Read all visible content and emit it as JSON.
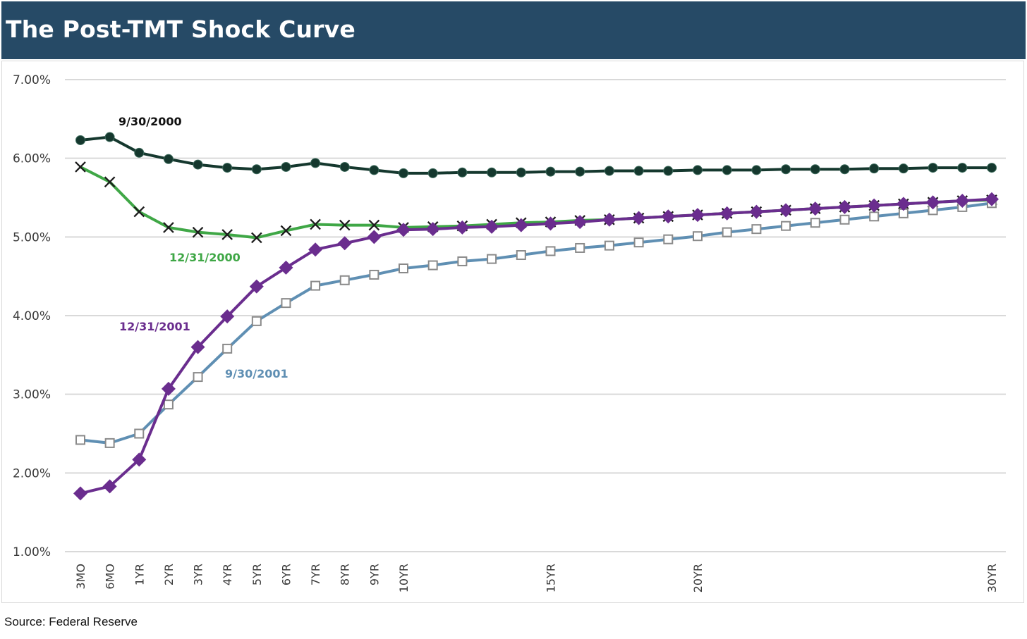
{
  "header": {
    "title": "The Post-TMT Shock Curve"
  },
  "footer": {
    "source": "Source: Federal Reserve"
  },
  "chart_data": {
    "type": "line",
    "title": "The Post-TMT Shock Curve",
    "xlabel": "",
    "ylabel": "",
    "ylim": [
      1.0,
      7.0
    ],
    "y_tick_values": [
      1.0,
      2.0,
      3.0,
      4.0,
      5.0,
      6.0,
      7.0
    ],
    "y_tick_labels": [
      "1.00%",
      "2.00%",
      "3.00%",
      "4.00%",
      "5.00%",
      "6.00%",
      "7.00%"
    ],
    "x_maturity_years": [
      0.25,
      0.5,
      1,
      2,
      3,
      4,
      5,
      6,
      7,
      8,
      9,
      10,
      11,
      12,
      13,
      14,
      15,
      16,
      17,
      18,
      19,
      20,
      21,
      22,
      23,
      24,
      25,
      26,
      27,
      28,
      29,
      30
    ],
    "x_tick_labels": [
      "3MO",
      "6MO",
      "1YR",
      "2YR",
      "3YR",
      "4YR",
      "5YR",
      "6YR",
      "7YR",
      "8YR",
      "9YR",
      "10YR",
      "",
      "",
      "",
      "",
      "15YR",
      "",
      "",
      "",
      "",
      "20YR",
      "",
      "",
      "",
      "",
      "",
      "",
      "",
      "",
      "",
      "30YR"
    ],
    "grid": true,
    "legend": "none (series labeled directly on chart)",
    "series": [
      {
        "name": "9/30/2000",
        "color": "#15382e",
        "marker": "circle",
        "values": [
          6.23,
          6.27,
          6.07,
          5.99,
          5.92,
          5.88,
          5.86,
          5.89,
          5.94,
          5.89,
          5.85,
          5.81,
          5.81,
          5.82,
          5.82,
          5.82,
          5.83,
          5.83,
          5.84,
          5.84,
          5.84,
          5.85,
          5.85,
          5.85,
          5.86,
          5.86,
          5.86,
          5.87,
          5.87,
          5.88,
          5.88,
          5.88
        ]
      },
      {
        "name": "12/31/2000",
        "color": "#3fa746",
        "marker": "x",
        "values": [
          5.89,
          5.7,
          5.32,
          5.12,
          5.06,
          5.03,
          4.99,
          5.08,
          5.16,
          5.15,
          5.15,
          5.12,
          5.13,
          5.14,
          5.16,
          5.18,
          5.19,
          5.21,
          5.22,
          5.24,
          5.26,
          5.28,
          5.3,
          5.32,
          5.34,
          5.36,
          5.38,
          5.4,
          5.42,
          5.44,
          5.46,
          5.47
        ]
      },
      {
        "name": "9/30/2001",
        "color": "#5f8fb3",
        "marker": "square",
        "values": [
          2.42,
          2.38,
          2.5,
          2.87,
          3.22,
          3.58,
          3.93,
          4.16,
          4.38,
          4.45,
          4.52,
          4.6,
          4.64,
          4.69,
          4.72,
          4.77,
          4.82,
          4.86,
          4.89,
          4.93,
          4.97,
          5.01,
          5.06,
          5.1,
          5.14,
          5.18,
          5.22,
          5.26,
          5.3,
          5.34,
          5.38,
          5.43
        ]
      },
      {
        "name": "12/31/2001",
        "color": "#6a2d8e",
        "marker": "diamond",
        "values": [
          1.74,
          1.83,
          2.17,
          3.07,
          3.6,
          3.99,
          4.37,
          4.61,
          4.84,
          4.92,
          5.0,
          5.09,
          5.1,
          5.12,
          5.13,
          5.15,
          5.17,
          5.19,
          5.22,
          5.24,
          5.26,
          5.28,
          5.3,
          5.32,
          5.34,
          5.36,
          5.38,
          5.4,
          5.42,
          5.44,
          5.46,
          5.48
        ]
      }
    ]
  }
}
